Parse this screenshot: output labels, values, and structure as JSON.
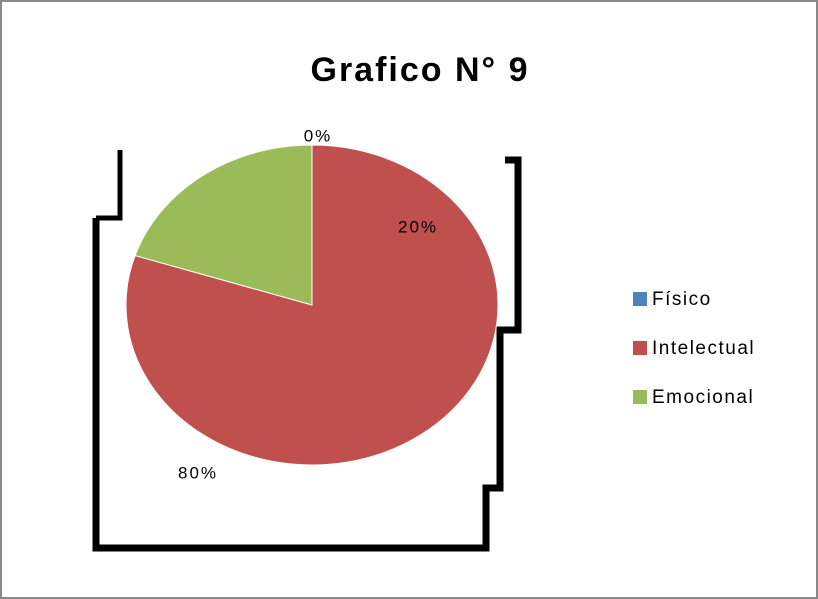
{
  "chart_data": {
    "type": "pie",
    "title": "Grafico N° 9",
    "categories": [
      "Físico",
      "Intelectual",
      "Emocional"
    ],
    "values": [
      0,
      80,
      20
    ],
    "value_labels": [
      "0%",
      "80%",
      "20%"
    ],
    "colors": [
      "#4f81bd",
      "#c0504d",
      "#9bbb59"
    ],
    "legend": "right"
  }
}
